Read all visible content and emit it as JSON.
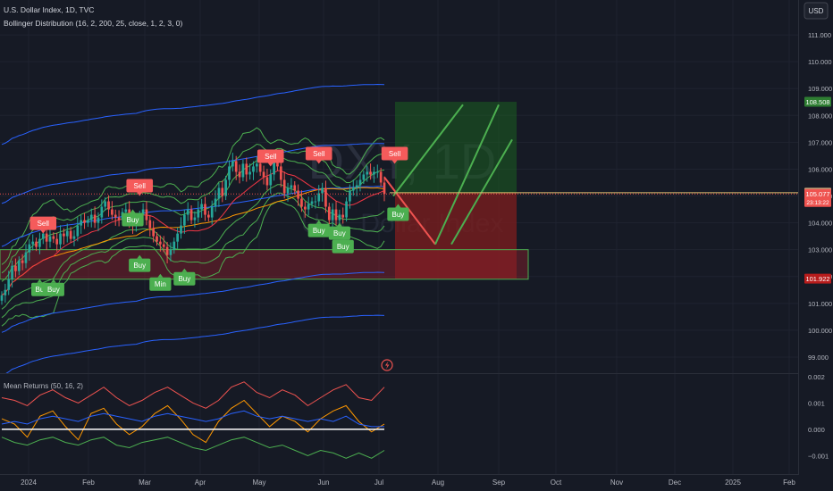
{
  "header": {
    "symbol_line": "U.S. Dollar Index, 1D, TVC",
    "indicator_line": "Bollinger Distribution (16, 2, 200, 25, close, 1, 2, 3, 0)",
    "currency_button": "USD"
  },
  "watermark": {
    "ticker": "DXY, 1D",
    "name": "U.S. Dollar Index"
  },
  "colors": {
    "background": "#161a25",
    "bull": "#26a69a",
    "bear": "#ef5350",
    "band_green": "#4caf50",
    "band_blue": "#2962ff",
    "basis_red": "#f23645",
    "basis_orange": "#ff9800",
    "sell_label": "#f55b5b",
    "buy_label": "#4caf50"
  },
  "chart_data": [
    {
      "type": "candlestick",
      "panel": "main",
      "y_ticks": [
        111.0,
        110.0,
        109.0,
        108.0,
        107.0,
        106.0,
        105.0,
        104.0,
        103.0,
        102.0,
        101.0,
        100.0,
        99.0
      ],
      "ylim": [
        98.4,
        112.3
      ],
      "x_ticks": [
        "2024",
        "Feb",
        "Mar",
        "Apr",
        "May",
        "Jun",
        "Jul",
        "Aug",
        "Sep",
        "Oct",
        "Nov",
        "Dec",
        "2025",
        "Feb"
      ],
      "closes": [
        101.3,
        101.5,
        101.9,
        102.4,
        102.2,
        102.6,
        102.5,
        102.9,
        103.2,
        103.3,
        103.1,
        103.4,
        103.6,
        103.3,
        103.5,
        103.4,
        103.2,
        103.6,
        103.5,
        103.7,
        103.4,
        103.5,
        103.9,
        104.1,
        104.0,
        104.1,
        104.3,
        104.0,
        104.2,
        104.6,
        104.8,
        104.5,
        104.3,
        104.2,
        104.1,
        104.4,
        104.5,
        104.0,
        103.9,
        104.1,
        104.3,
        104.5,
        104.1,
        103.8,
        103.5,
        103.3,
        103.2,
        103.1,
        102.8,
        103.0,
        103.3,
        103.6,
        103.9,
        104.3,
        104.5,
        104.1,
        104.2,
        104.5,
        104.7,
        104.3,
        104.2,
        104.6,
        104.9,
        105.3,
        105.0,
        105.6,
        106.1,
        106.3,
        105.9,
        105.7,
        106.2,
        105.8,
        105.9,
        106.1,
        106.2,
        105.9,
        105.7,
        105.4,
        105.8,
        106.3,
        106.1,
        105.6,
        105.1,
        105.3,
        105.4,
        105.2,
        104.9,
        104.6,
        104.5,
        104.7,
        104.8,
        104.8,
        105.1,
        105.3,
        104.6,
        104.1,
        104.5,
        104.1,
        104.3,
        104.2,
        104.8,
        105.2,
        105.3,
        105.4,
        105.6,
        105.8,
        105.9,
        105.8,
        105.9,
        105.9,
        105.5,
        105.077
      ],
      "prices": {
        "last": 105.077,
        "last_countdown": "23:13:22",
        "level": 105.12,
        "target": 108.508,
        "stop": 101.922
      },
      "signals": [
        {
          "label": "Sell",
          "dir": "sell",
          "bar": 12,
          "price": 103.6
        },
        {
          "label": "Bu",
          "dir": "buy",
          "bar": 11,
          "price": 101.9
        },
        {
          "label": "Buy",
          "dir": "buy",
          "bar": 15,
          "price": 101.9
        },
        {
          "label": "Sell",
          "dir": "sell",
          "bar": 40,
          "price": 105.0
        },
        {
          "label": "Buy",
          "dir": "buy",
          "bar": 38,
          "price": 104.5
        },
        {
          "label": "Buy",
          "dir": "buy",
          "bar": 40,
          "price": 102.8
        },
        {
          "label": "Min",
          "dir": "buy",
          "bar": 46,
          "price": 102.1
        },
        {
          "label": "Buy",
          "dir": "buy",
          "bar": 53,
          "price": 102.3
        },
        {
          "label": "Sell",
          "dir": "sell",
          "bar": 78,
          "price": 106.1
        },
        {
          "label": "Sell",
          "dir": "sell",
          "bar": 92,
          "price": 106.2
        },
        {
          "label": "Buy",
          "dir": "buy",
          "bar": 92,
          "price": 104.1
        },
        {
          "label": "Buy",
          "dir": "buy",
          "bar": 98,
          "price": 104.0
        },
        {
          "label": "Buy",
          "dir": "buy",
          "bar": 99,
          "price": 103.5
        },
        {
          "label": "Sell",
          "dir": "sell",
          "bar": 114,
          "price": 106.2
        },
        {
          "label": "Buy",
          "dir": "buy",
          "bar": 115,
          "price": 104.7
        }
      ],
      "zones": {
        "support_box": [
          101.9,
          103.0
        ],
        "position_long": {
          "entry": 105.12,
          "target": 108.508,
          "stop": 101.922
        }
      }
    },
    {
      "type": "line",
      "panel": "indicator",
      "title": "Mean Returns (50, 16, 2)",
      "y_ticks": [
        0.002,
        0.001,
        0.0,
        -0.001
      ],
      "y_tick_labels": [
        "0.002",
        "0.001",
        "0.000",
        "−0.001"
      ],
      "ylim": [
        -0.0017,
        0.0021
      ],
      "series": [
        {
          "color": "#ef5350",
          "values": [
            0.0012,
            0.0011,
            0.0009,
            0.0013,
            0.0015,
            0.0012,
            0.001,
            0.0013,
            0.0016,
            0.0012,
            0.0009,
            0.0011,
            0.0014,
            0.0016,
            0.0013,
            0.001,
            0.0008,
            0.0011,
            0.0016,
            0.0018,
            0.0014,
            0.0012,
            0.0015,
            0.0013,
            0.0009,
            0.0012,
            0.0015,
            0.0017,
            0.0012,
            0.0011,
            0.0016
          ]
        },
        {
          "color": "#ff9800",
          "values": [
            0.0004,
            0.0002,
            -0.0003,
            0.0005,
            0.0007,
            0.0001,
            -0.0004,
            0.0006,
            0.0008,
            0.0002,
            -0.0002,
            0.0001,
            0.0006,
            0.0009,
            0.0004,
            -0.0002,
            -0.0005,
            0.0003,
            0.0008,
            0.0011,
            0.0006,
            0.0001,
            0.0005,
            0.0003,
            -0.0001,
            0.0004,
            0.0007,
            0.0009,
            0.0003,
            -0.0001,
            0.0002
          ]
        },
        {
          "color": "#2962ff",
          "values": [
            0.0002,
            0.0003,
            0.0002,
            0.0004,
            0.0005,
            0.0004,
            0.0003,
            0.0005,
            0.0006,
            0.0005,
            0.0004,
            0.0003,
            0.0005,
            0.0006,
            0.0005,
            0.0004,
            0.0003,
            0.0004,
            0.0006,
            0.0007,
            0.0005,
            0.0004,
            0.0005,
            0.0004,
            0.0003,
            0.0004,
            0.0003,
            0.0005,
            0.0002,
            0.0001,
            0.0001
          ]
        },
        {
          "color": "#4caf50",
          "values": [
            -0.0003,
            -0.0005,
            -0.0006,
            -0.0004,
            -0.0003,
            -0.0005,
            -0.0006,
            -0.0004,
            -0.0003,
            -0.0006,
            -0.0007,
            -0.0005,
            -0.0004,
            -0.0003,
            -0.0005,
            -0.0007,
            -0.0008,
            -0.0006,
            -0.0004,
            -0.0003,
            -0.0005,
            -0.0007,
            -0.0006,
            -0.0008,
            -0.001,
            -0.0008,
            -0.0009,
            -0.0011,
            -0.0009,
            -0.0011,
            -0.0008
          ]
        },
        {
          "color": "#ffffff",
          "values": [
            0.0,
            0.0,
            0.0,
            0.0,
            0.0,
            0.0,
            0.0,
            0.0,
            0.0,
            0.0,
            0.0,
            0.0,
            0.0,
            0.0,
            0.0,
            0.0,
            0.0,
            0.0,
            0.0,
            0.0,
            0.0,
            0.0,
            0.0,
            0.0,
            0.0,
            0.0,
            0.0,
            0.0,
            0.0,
            0.0,
            0.0
          ]
        }
      ]
    }
  ]
}
